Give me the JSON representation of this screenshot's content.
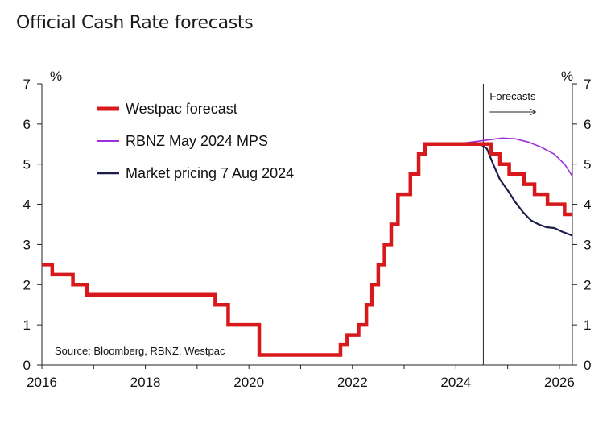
{
  "chart_data": {
    "type": "line",
    "title": "Official Cash Rate forecasts",
    "ylabel_left": "%",
    "ylabel_right": "%",
    "ylim": [
      0,
      7
    ],
    "xlim": [
      2016.0,
      2026.25
    ],
    "x_ticks": [
      2016,
      2018,
      2020,
      2022,
      2024,
      2026
    ],
    "y_ticks": [
      0,
      1,
      2,
      3,
      4,
      5,
      6,
      7
    ],
    "forecast_start": 2024.53,
    "forecasts_label": "Forecasts",
    "source": "Source: Bloomberg, RBNZ, Westpac",
    "series": [
      {
        "name": "Westpac forecast",
        "color": "#d7191c",
        "step": true,
        "points": [
          [
            2016.0,
            2.5
          ],
          [
            2016.2,
            2.25
          ],
          [
            2016.6,
            2.0
          ],
          [
            2016.87,
            1.75
          ],
          [
            2019.35,
            1.5
          ],
          [
            2019.6,
            1.0
          ],
          [
            2020.2,
            0.25
          ],
          [
            2021.77,
            0.5
          ],
          [
            2021.9,
            0.75
          ],
          [
            2022.12,
            1.0
          ],
          [
            2022.27,
            1.5
          ],
          [
            2022.38,
            2.0
          ],
          [
            2022.5,
            2.5
          ],
          [
            2022.62,
            3.0
          ],
          [
            2022.75,
            3.5
          ],
          [
            2022.88,
            4.25
          ],
          [
            2023.12,
            4.75
          ],
          [
            2023.28,
            5.25
          ],
          [
            2023.4,
            5.5
          ],
          [
            2024.68,
            5.25
          ],
          [
            2024.85,
            5.0
          ],
          [
            2025.03,
            4.75
          ],
          [
            2025.32,
            4.5
          ],
          [
            2025.52,
            4.25
          ],
          [
            2025.77,
            4.0
          ],
          [
            2026.1,
            3.75
          ],
          [
            2026.25,
            3.75
          ]
        ]
      },
      {
        "name": "RBNZ May 2024 MPS",
        "color": "#9b30d9",
        "step": false,
        "points": [
          [
            2024.0,
            5.5
          ],
          [
            2024.3,
            5.55
          ],
          [
            2024.6,
            5.6
          ],
          [
            2024.9,
            5.65
          ],
          [
            2025.15,
            5.63
          ],
          [
            2025.4,
            5.55
          ],
          [
            2025.65,
            5.42
          ],
          [
            2025.9,
            5.25
          ],
          [
            2026.1,
            5.0
          ],
          [
            2026.25,
            4.7
          ]
        ]
      },
      {
        "name": "Market pricing 7 Aug 2024",
        "color": "#1b1f4a",
        "step": false,
        "points": [
          [
            2024.47,
            5.5
          ],
          [
            2024.6,
            5.38
          ],
          [
            2024.72,
            5.0
          ],
          [
            2024.85,
            4.62
          ],
          [
            2025.0,
            4.35
          ],
          [
            2025.15,
            4.05
          ],
          [
            2025.3,
            3.8
          ],
          [
            2025.45,
            3.6
          ],
          [
            2025.6,
            3.5
          ],
          [
            2025.75,
            3.43
          ],
          [
            2025.9,
            3.41
          ],
          [
            2026.05,
            3.32
          ],
          [
            2026.25,
            3.22
          ]
        ]
      }
    ]
  }
}
